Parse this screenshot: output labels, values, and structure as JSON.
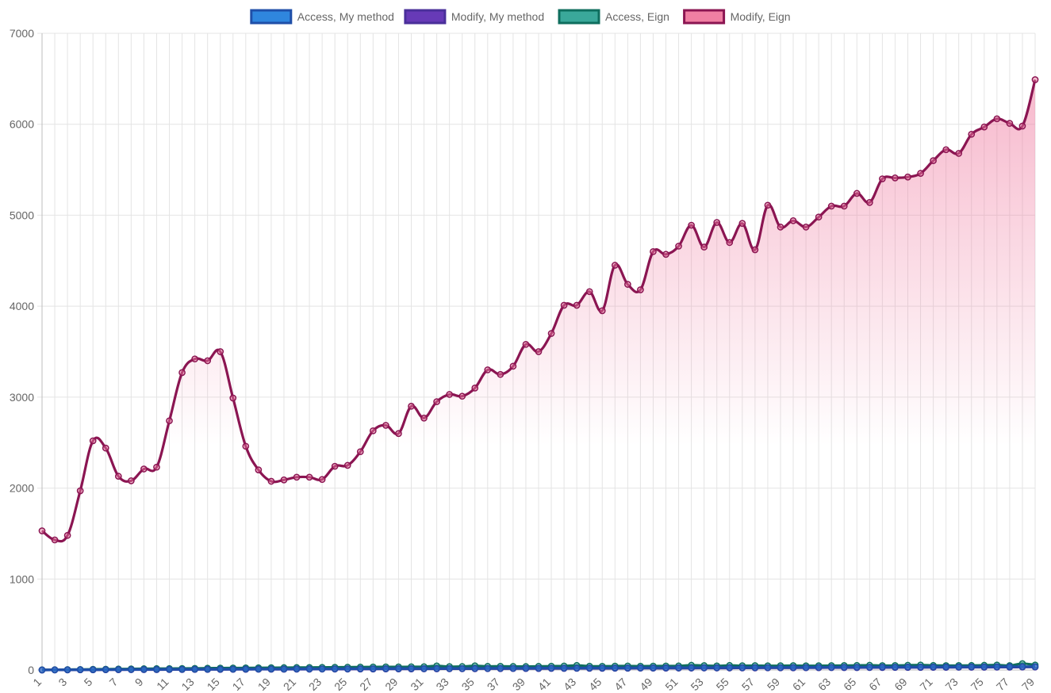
{
  "chart_data": {
    "type": "line",
    "title": "",
    "xlabel": "",
    "ylabel": "",
    "ylim": [
      0,
      7000
    ],
    "yticks": [
      0,
      1000,
      2000,
      3000,
      4000,
      5000,
      6000,
      7000
    ],
    "ytick_labels": [
      "0",
      "1000",
      "2000",
      "3000",
      "4000",
      "5000",
      "6000",
      "7000"
    ],
    "x": [
      1,
      2,
      3,
      4,
      5,
      6,
      7,
      8,
      9,
      10,
      11,
      12,
      13,
      14,
      15,
      16,
      17,
      18,
      19,
      20,
      21,
      22,
      23,
      24,
      25,
      26,
      27,
      28,
      29,
      30,
      31,
      32,
      33,
      34,
      35,
      36,
      37,
      38,
      39,
      40,
      41,
      42,
      43,
      44,
      45,
      46,
      47,
      48,
      49,
      50,
      51,
      52,
      53,
      54,
      55,
      56,
      57,
      58,
      59,
      60,
      61,
      62,
      63,
      64,
      65,
      66,
      67,
      68,
      69,
      70,
      71,
      72,
      73,
      74,
      75,
      76,
      77,
      78,
      79
    ],
    "xtick_labels": [
      "1",
      "3",
      "5",
      "7",
      "9",
      "11",
      "13",
      "15",
      "17",
      "19",
      "21",
      "23",
      "25",
      "27",
      "29",
      "31",
      "33",
      "35",
      "37",
      "39",
      "41",
      "43",
      "45",
      "47",
      "49",
      "51",
      "53",
      "55",
      "57",
      "59",
      "61",
      "63",
      "65",
      "67",
      "69",
      "71",
      "73",
      "75",
      "77",
      "79"
    ],
    "grid": true,
    "legend_position": "top",
    "series": [
      {
        "name": "Access, My method",
        "color": "#1f4fa8",
        "fill": "#2f86de",
        "values": [
          0,
          1,
          2,
          3,
          3,
          4,
          5,
          5,
          6,
          6,
          7,
          7,
          8,
          8,
          9,
          9,
          10,
          10,
          11,
          11,
          12,
          12,
          12,
          13,
          13,
          14,
          14,
          15,
          15,
          16,
          16,
          17,
          17,
          17,
          18,
          18,
          19,
          19,
          20,
          20,
          21,
          21,
          21,
          22,
          22,
          23,
          23,
          24,
          24,
          25,
          25,
          25,
          26,
          26,
          27,
          27,
          28,
          28,
          28,
          29,
          29,
          30,
          30,
          31,
          31,
          31,
          32,
          32,
          33,
          33,
          34,
          34,
          34,
          35,
          35,
          36,
          36,
          37,
          37
        ]
      },
      {
        "name": "Modify, My method",
        "color": "#4a2f9a",
        "fill": "#673ab7",
        "values": [
          0,
          1,
          1,
          2,
          2,
          3,
          3,
          4,
          4,
          4,
          5,
          5,
          6,
          6,
          6,
          7,
          7,
          8,
          8,
          8,
          9,
          9,
          10,
          10,
          10,
          11,
          11,
          12,
          12,
          12,
          13,
          13,
          14,
          14,
          14,
          15,
          15,
          16,
          16,
          16,
          17,
          17,
          18,
          18,
          18,
          19,
          19,
          20,
          20,
          20,
          21,
          21,
          22,
          22,
          22,
          23,
          23,
          24,
          24,
          24,
          25,
          25,
          26,
          26,
          26,
          27,
          27,
          28,
          28,
          28,
          29,
          29,
          30,
          30,
          30,
          31,
          31,
          32,
          32
        ]
      },
      {
        "name": "Access, Eign",
        "color": "#0f6e5e",
        "fill": "#3aa89a",
        "values": [
          2,
          3,
          5,
          6,
          8,
          9,
          11,
          12,
          14,
          15,
          16,
          17,
          18,
          20,
          21,
          22,
          23,
          24,
          25,
          26,
          27,
          28,
          29,
          30,
          31,
          32,
          33,
          34,
          34,
          35,
          36,
          45,
          37,
          38,
          46,
          40,
          41,
          39,
          38,
          40,
          42,
          44,
          50,
          42,
          41,
          43,
          44,
          42,
          43,
          44,
          45,
          52,
          48,
          45,
          50,
          47,
          48,
          46,
          47,
          48,
          46,
          47,
          48,
          49,
          50,
          52,
          48,
          49,
          52,
          55,
          50,
          48,
          49,
          50,
          52,
          55,
          48,
          70,
          55
        ]
      },
      {
        "name": "Modify, Eign",
        "color": "#8b1552",
        "fill": "#f07fa3",
        "values": [
          1530,
          1430,
          1480,
          1970,
          2520,
          2440,
          2130,
          2080,
          2210,
          2230,
          2740,
          3270,
          3420,
          3400,
          3500,
          2990,
          2460,
          2200,
          2075,
          2090,
          2120,
          2120,
          2095,
          2240,
          2250,
          2400,
          2630,
          2690,
          2600,
          2900,
          2770,
          2950,
          3030,
          3010,
          3100,
          3300,
          3250,
          3340,
          3580,
          3500,
          3700,
          4010,
          4010,
          4160,
          3950,
          4450,
          4240,
          4180,
          4600,
          4570,
          4660,
          4890,
          4650,
          4920,
          4700,
          4910,
          4620,
          5110,
          4870,
          4940,
          4870,
          4980,
          5100,
          5100,
          5240,
          5140,
          5400,
          5410,
          5420,
          5460,
          5600,
          5720,
          5680,
          5890,
          5970,
          6060,
          6010,
          5980,
          6490
        ]
      }
    ]
  }
}
